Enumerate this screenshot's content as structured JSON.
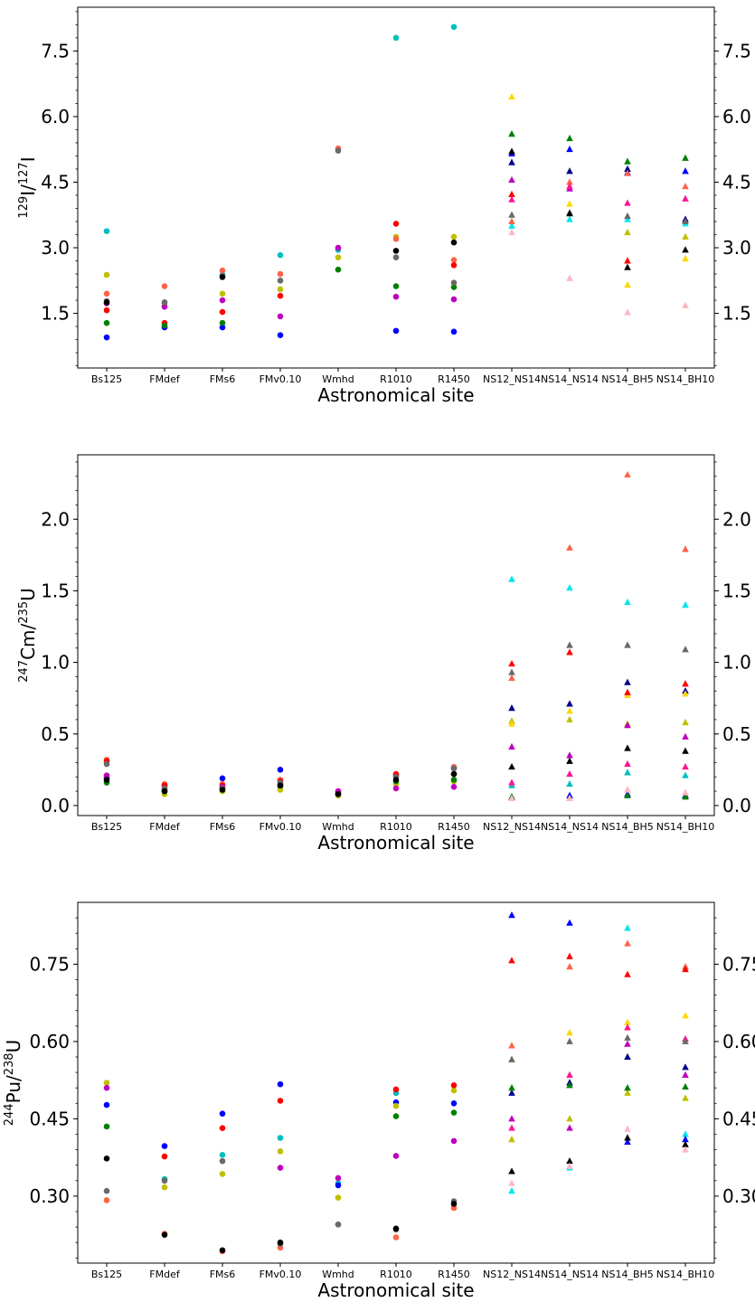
{
  "chart_data": [
    {
      "type": "scatter",
      "xlabel": "Astronomical site",
      "ylabel": "129I/127I",
      "ylabel_parts": {
        "iso1": "129",
        "el1": "I",
        "iso2": "127",
        "el2": "I"
      },
      "categories": [
        "Bs125",
        "FMdef",
        "FMs6",
        "FMv0.10",
        "Wmhd",
        "R1010",
        "R1450",
        "NS12_NS14",
        "NS14_NS14",
        "NS14_BH5",
        "NS14_BH10"
      ],
      "yticks": [
        "1.5",
        "3.0",
        "4.5",
        "6.0",
        "7.5"
      ],
      "ylim": [
        0.25,
        8.5
      ],
      "marker_by_category": [
        "circle",
        "circle",
        "circle",
        "circle",
        "circle",
        "circle",
        "circle",
        "triangle",
        "triangle",
        "triangle",
        "triangle"
      ],
      "series": [
        {
          "color": "#00bfbf",
          "values": [
            3.38,
            1.75,
            2.38,
            2.83,
            2.95,
            7.8,
            8.05,
            null,
            null,
            null,
            null
          ]
        },
        {
          "color": "#00e5ee",
          "values": [
            null,
            null,
            null,
            null,
            null,
            null,
            null,
            3.5,
            3.65,
            3.65,
            3.55
          ]
        },
        {
          "color": "#0000ff",
          "values": [
            0.95,
            1.18,
            1.18,
            1.0,
            null,
            1.1,
            1.08,
            5.15,
            5.25,
            4.72,
            4.75
          ]
        },
        {
          "color": "#00008b",
          "values": [
            null,
            null,
            null,
            null,
            null,
            null,
            null,
            4.95,
            4.75,
            4.8,
            3.65
          ]
        },
        {
          "color": "#bfbf00",
          "values": [
            2.38,
            1.68,
            1.95,
            2.05,
            2.78,
            3.25,
            3.25,
            null,
            null,
            3.35,
            3.25
          ]
        },
        {
          "color": "#ffd700",
          "values": [
            null,
            null,
            null,
            null,
            null,
            null,
            null,
            6.45,
            4.0,
            2.15,
            2.75
          ]
        },
        {
          "color": "#ff6347",
          "values": [
            1.95,
            2.12,
            2.48,
            2.4,
            5.27,
            3.2,
            2.72,
            3.6,
            4.5,
            4.7,
            4.4
          ]
        },
        {
          "color": "#ff0000",
          "values": [
            1.57,
            1.28,
            1.53,
            1.9,
            null,
            3.55,
            2.6,
            4.22,
            null,
            2.7,
            null
          ]
        },
        {
          "color": "#008000",
          "values": [
            1.28,
            1.22,
            1.28,
            null,
            2.5,
            2.12,
            2.1,
            5.6,
            5.5,
            4.97,
            5.05
          ]
        },
        {
          "color": "#bf00bf",
          "values": [
            1.73,
            1.65,
            1.8,
            1.43,
            3.0,
            1.88,
            1.82,
            4.55,
            4.35,
            null,
            null
          ]
        },
        {
          "color": "#ff1493",
          "values": [
            null,
            null,
            null,
            null,
            null,
            null,
            null,
            4.1,
            4.4,
            4.02,
            4.12
          ]
        },
        {
          "color": "#696969",
          "values": [
            1.78,
            1.75,
            2.35,
            2.25,
            5.22,
            2.78,
            2.2,
            3.75,
            3.8,
            3.72,
            3.6
          ]
        },
        {
          "color": "#000000",
          "values": [
            1.75,
            null,
            2.33,
            null,
            null,
            2.93,
            3.12,
            5.2,
            3.78,
            2.55,
            2.95
          ]
        },
        {
          "color": "#ffb6c1",
          "values": [
            null,
            null,
            null,
            null,
            null,
            null,
            null,
            3.35,
            2.3,
            1.52,
            1.68
          ]
        }
      ]
    },
    {
      "type": "scatter",
      "xlabel": "Astronomical site",
      "ylabel": "247Cm/235U",
      "ylabel_parts": {
        "iso1": "247",
        "el1": "Cm",
        "iso2": "235",
        "el2": "U"
      },
      "categories": [
        "Bs125",
        "FMdef",
        "FMs6",
        "FMv0.10",
        "Wmhd",
        "R1010",
        "R1450",
        "NS12_NS14",
        "NS14_NS14",
        "NS14_BH5",
        "NS14_BH10"
      ],
      "yticks": [
        "0.0",
        "0.5",
        "1.0",
        "1.5",
        "2.0"
      ],
      "ylim": [
        -0.07,
        2.45
      ],
      "marker_by_category": [
        "circle",
        "circle",
        "circle",
        "circle",
        "circle",
        "circle",
        "circle",
        "triangle",
        "triangle",
        "triangle",
        "triangle"
      ],
      "series": [
        {
          "color": "#00bfbf",
          "values": [
            0.2,
            0.11,
            0.13,
            0.13,
            0.09,
            0.16,
            0.17,
            0.14,
            0.15,
            0.23,
            0.21
          ]
        },
        {
          "color": "#00e5ee",
          "values": [
            null,
            null,
            null,
            null,
            null,
            null,
            null,
            1.58,
            1.52,
            1.42,
            1.4
          ]
        },
        {
          "color": "#0000ff",
          "values": [
            0.19,
            0.14,
            0.19,
            0.25,
            null,
            0.21,
            0.26,
            0.06,
            0.07,
            0.08,
            0.07
          ]
        },
        {
          "color": "#00008b",
          "values": [
            null,
            null,
            null,
            null,
            null,
            null,
            null,
            0.68,
            0.71,
            0.86,
            0.8
          ]
        },
        {
          "color": "#bfbf00",
          "values": [
            0.21,
            0.08,
            0.1,
            0.11,
            0.07,
            0.15,
            0.17,
            0.59,
            0.6,
            0.57,
            0.58
          ]
        },
        {
          "color": "#ffd700",
          "values": [
            null,
            null,
            null,
            null,
            null,
            null,
            null,
            0.57,
            0.66,
            0.77,
            0.78
          ]
        },
        {
          "color": "#ff6347",
          "values": [
            0.32,
            0.15,
            0.15,
            0.18,
            0.1,
            0.21,
            0.27,
            0.89,
            1.8,
            2.31,
            1.79
          ]
        },
        {
          "color": "#ff0000",
          "values": [
            0.31,
            0.14,
            0.14,
            0.17,
            null,
            0.22,
            0.22,
            0.99,
            1.07,
            0.79,
            0.85
          ]
        },
        {
          "color": "#008000",
          "values": [
            0.16,
            0.1,
            0.12,
            0.14,
            0.08,
            0.17,
            0.18,
            0.06,
            0.05,
            0.07,
            0.06
          ]
        },
        {
          "color": "#bf00bf",
          "values": [
            0.21,
            0.12,
            0.13,
            0.15,
            0.1,
            0.12,
            0.13,
            0.41,
            0.35,
            0.56,
            0.48
          ]
        },
        {
          "color": "#ff1493",
          "values": [
            null,
            null,
            null,
            null,
            null,
            null,
            null,
            0.16,
            0.22,
            0.29,
            0.27
          ]
        },
        {
          "color": "#696969",
          "values": [
            0.29,
            0.12,
            0.12,
            0.16,
            0.08,
            0.2,
            0.26,
            0.93,
            1.12,
            1.12,
            1.09
          ]
        },
        {
          "color": "#000000",
          "values": [
            0.18,
            0.1,
            0.11,
            0.14,
            0.08,
            0.18,
            0.22,
            0.27,
            0.31,
            0.4,
            0.38
          ]
        },
        {
          "color": "#ffb6c1",
          "values": [
            null,
            null,
            null,
            null,
            null,
            null,
            null,
            0.05,
            0.05,
            0.11,
            0.09
          ]
        }
      ]
    },
    {
      "type": "scatter",
      "xlabel": "Astronomical site",
      "ylabel": "244Pu/238U",
      "ylabel_parts": {
        "iso1": "244",
        "el1": "Pu",
        "iso2": "238",
        "el2": "U"
      },
      "categories": [
        "Bs125",
        "FMdef",
        "FMs6",
        "FMv0.10",
        "Wmhd",
        "R1010",
        "R1450",
        "NS12_NS14",
        "NS14_NS14",
        "NS14_BH5",
        "NS14_BH10"
      ],
      "yticks": [
        "0.30",
        "0.45",
        "0.60",
        "0.75"
      ],
      "ylim": [
        0.17,
        0.87
      ],
      "marker_by_category": [
        "circle",
        "circle",
        "circle",
        "circle",
        "circle",
        "circle",
        "circle",
        "triangle",
        "triangle",
        "triangle",
        "triangle"
      ],
      "series": [
        {
          "color": "#00bfbf",
          "values": [
            null,
            0.333,
            0.38,
            0.413,
            0.325,
            0.5,
            null,
            null,
            null,
            null,
            null
          ]
        },
        {
          "color": "#00e5ee",
          "values": [
            null,
            null,
            null,
            null,
            null,
            null,
            null,
            0.31,
            0.355,
            0.82,
            0.42
          ]
        },
        {
          "color": "#0000ff",
          "values": [
            0.477,
            0.397,
            0.46,
            0.517,
            0.321,
            0.482,
            0.48,
            0.845,
            0.83,
            0.405,
            0.41
          ]
        },
        {
          "color": "#00008b",
          "values": [
            null,
            null,
            null,
            null,
            null,
            null,
            null,
            0.5,
            0.52,
            0.57,
            0.55
          ]
        },
        {
          "color": "#bfbf00",
          "values": [
            0.52,
            0.317,
            0.343,
            0.387,
            0.297,
            0.475,
            0.505,
            0.41,
            0.45,
            0.5,
            0.49
          ]
        },
        {
          "color": "#ffd700",
          "values": [
            null,
            null,
            null,
            null,
            null,
            null,
            null,
            0.565,
            0.617,
            0.637,
            0.65
          ]
        },
        {
          "color": "#ff6347",
          "values": [
            0.292,
            0.227,
            0.193,
            0.2,
            0.245,
            0.22,
            0.277,
            0.592,
            0.745,
            0.79,
            0.745
          ]
        },
        {
          "color": "#ff0000",
          "values": [
            null,
            0.377,
            0.432,
            0.485,
            null,
            0.507,
            0.515,
            0.757,
            0.765,
            0.73,
            0.74
          ]
        },
        {
          "color": "#008000",
          "values": [
            0.435,
            null,
            null,
            null,
            null,
            0.455,
            0.462,
            0.51,
            0.515,
            0.51,
            0.512
          ]
        },
        {
          "color": "#bf00bf",
          "values": [
            0.51,
            null,
            null,
            0.355,
            0.335,
            0.378,
            0.407,
            0.45,
            0.432,
            0.595,
            0.535
          ]
        },
        {
          "color": "#ff1493",
          "values": [
            null,
            null,
            null,
            null,
            null,
            null,
            null,
            0.432,
            0.535,
            0.627,
            0.605
          ]
        },
        {
          "color": "#696969",
          "values": [
            0.31,
            0.33,
            0.368,
            0.207,
            0.245,
            0.235,
            0.29,
            0.565,
            0.6,
            0.607,
            0.6
          ]
        },
        {
          "color": "#000000",
          "values": [
            0.373,
            0.225,
            0.195,
            0.21,
            null,
            0.237,
            0.285,
            0.348,
            0.368,
            0.413,
            0.4
          ]
        },
        {
          "color": "#ffb6c1",
          "values": [
            null,
            null,
            null,
            null,
            null,
            null,
            null,
            0.325,
            0.358,
            0.43,
            0.39
          ]
        }
      ]
    }
  ]
}
